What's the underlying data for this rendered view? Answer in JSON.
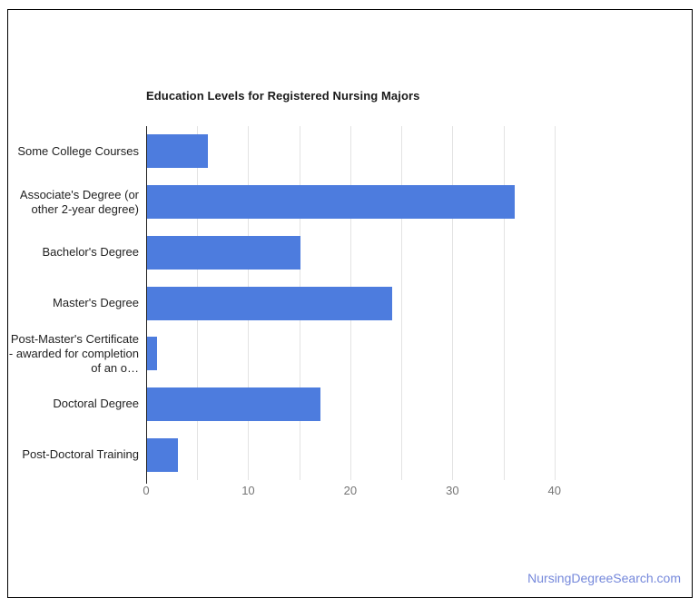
{
  "page": {
    "background": "#ffffff",
    "border_color": "#000000"
  },
  "watermark": {
    "text": "NursingDegreeSearch.com",
    "color": "#7588DB"
  },
  "chart_data": {
    "type": "bar",
    "orientation": "horizontal",
    "title": "Education Levels for Registered Nursing Majors",
    "categories": [
      "Some College Courses",
      "Associate's Degree (or other 2-year degree)",
      "Bachelor's Degree",
      "Master's Degree",
      "Post-Master's Certificate - awarded for completion of an o…",
      "Doctoral Degree",
      "Post-Doctoral Training"
    ],
    "values": [
      6,
      36,
      15,
      24,
      1,
      17,
      3
    ],
    "xlabel": "",
    "ylabel": "",
    "legend": "none",
    "axis": {
      "ticks": [
        0,
        10,
        20,
        30,
        40
      ],
      "min": 0,
      "max": 45,
      "gridline_step": 5,
      "gridline_last": 40
    },
    "colors": {
      "bar": "#4D7CDE",
      "gridline": "#E3E3E3",
      "axis_line": "#1f1f1f",
      "tick_label": "#757575",
      "category_label": "#1f1f1f",
      "title": "#1a1a1a"
    }
  }
}
